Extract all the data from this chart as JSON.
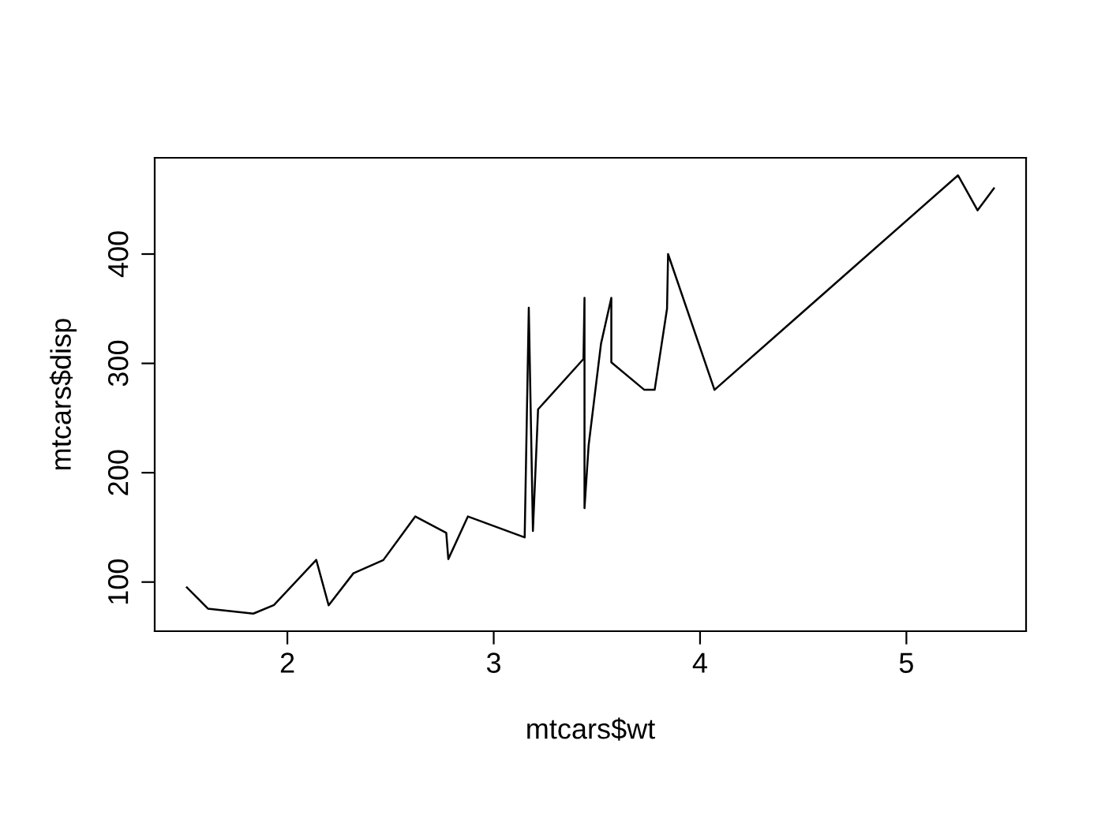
{
  "chart_data": {
    "type": "line",
    "xlabel": "mtcars$wt",
    "ylabel": "mtcars$disp",
    "x": [
      1.513,
      1.615,
      1.835,
      1.935,
      2.14,
      2.2,
      2.32,
      2.465,
      2.62,
      2.77,
      2.78,
      2.875,
      3.15,
      3.17,
      3.19,
      3.215,
      3.435,
      3.44,
      3.44,
      3.44,
      3.46,
      3.52,
      3.57,
      3.57,
      3.73,
      3.78,
      3.84,
      3.845,
      4.07,
      5.25,
      5.345,
      5.424
    ],
    "series": [
      {
        "color": "#000000",
        "values": [
          95.1,
          75.7,
          71.1,
          79,
          120.3,
          78.7,
          108,
          120.1,
          160,
          145,
          121,
          160,
          140.8,
          351,
          146.7,
          258,
          304,
          360,
          167.6,
          167.6,
          225,
          318,
          360,
          301,
          275.8,
          275.8,
          350,
          400,
          275.8,
          472,
          440,
          460
        ]
      }
    ],
    "xlim": [
      1.357,
      5.58
    ],
    "ylim": [
      55.06,
      488.04
    ],
    "xticks": [
      2,
      3,
      4,
      5
    ],
    "yticks": [
      100,
      200,
      300,
      400
    ],
    "grid": false,
    "legend": false
  }
}
